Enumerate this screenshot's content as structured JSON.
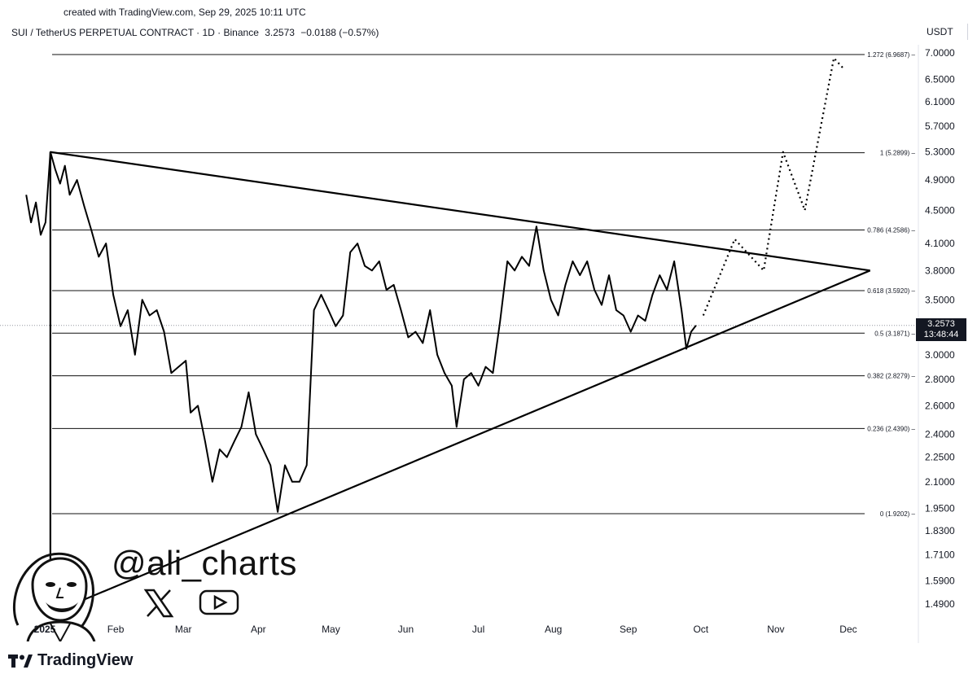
{
  "watermark": {
    "created": "created with TradingView.com, Sep 29, 2025 10:11 UTC",
    "brand": "TradingView",
    "handle": "@ali_charts",
    "social_icons": [
      "x-icon",
      "youtube-icon"
    ]
  },
  "header": {
    "symbol": "SUI / TetherUS PERPETUAL CONTRACT · 1D · Binance",
    "last": "3.2573",
    "change": "−0.0188 (−0.57%)",
    "currency": "USDT"
  },
  "price_tag": {
    "price": "3.2573",
    "countdown": "13:48:44",
    "color": "#131722"
  },
  "chart_data": {
    "type": "line",
    "x_axis": {
      "tick_labels": [
        "2025",
        "Feb",
        "Mar",
        "Apr",
        "May",
        "Jun",
        "Jul",
        "Aug",
        "Sep",
        "Oct",
        "Nov",
        "Dec"
      ],
      "range": [
        "2024-12-31",
        "2025-12-10"
      ]
    },
    "y_axis": {
      "scale": "log",
      "tick_labels": [
        "7.0000",
        "6.5000",
        "6.1000",
        "5.7000",
        "5.3000",
        "4.9000",
        "4.5000",
        "4.1000",
        "3.8000",
        "3.5000",
        "3.0000",
        "2.8000",
        "2.6000",
        "2.4000",
        "2.2500",
        "2.1000",
        "1.9500",
        "1.8300",
        "1.7100",
        "1.5900",
        "1.4900"
      ],
      "range": [
        1.45,
        7.3
      ]
    },
    "grid": false,
    "series": [
      {
        "color": "#000000",
        "points": [
          [
            "2024-12-26",
            4.7
          ],
          [
            "2024-12-28",
            4.35
          ],
          [
            "2024-12-30",
            4.6
          ],
          [
            "2025-01-01",
            4.2
          ],
          [
            "2025-01-03",
            4.35
          ],
          [
            "2025-01-05",
            5.3
          ],
          [
            "2025-01-07",
            5.05
          ],
          [
            "2025-01-09",
            4.85
          ],
          [
            "2025-01-11",
            5.1
          ],
          [
            "2025-01-13",
            4.7
          ],
          [
            "2025-01-16",
            4.9
          ],
          [
            "2025-01-19",
            4.55
          ],
          [
            "2025-01-22",
            4.25
          ],
          [
            "2025-01-25",
            3.95
          ],
          [
            "2025-01-28",
            4.1
          ],
          [
            "2025-01-31",
            3.55
          ],
          [
            "2025-02-03",
            3.25
          ],
          [
            "2025-02-06",
            3.4
          ],
          [
            "2025-02-09",
            3.0
          ],
          [
            "2025-02-12",
            3.5
          ],
          [
            "2025-02-15",
            3.35
          ],
          [
            "2025-02-18",
            3.4
          ],
          [
            "2025-02-21",
            3.2
          ],
          [
            "2025-02-24",
            2.85
          ],
          [
            "2025-02-27",
            2.9
          ],
          [
            "2025-03-02",
            2.95
          ],
          [
            "2025-03-04",
            2.55
          ],
          [
            "2025-03-07",
            2.6
          ],
          [
            "2025-03-10",
            2.35
          ],
          [
            "2025-03-13",
            2.1
          ],
          [
            "2025-03-16",
            2.3
          ],
          [
            "2025-03-19",
            2.25
          ],
          [
            "2025-03-22",
            2.35
          ],
          [
            "2025-03-25",
            2.45
          ],
          [
            "2025-03-28",
            2.7
          ],
          [
            "2025-03-31",
            2.4
          ],
          [
            "2025-04-03",
            2.3
          ],
          [
            "2025-04-06",
            2.2
          ],
          [
            "2025-04-09",
            1.93
          ],
          [
            "2025-04-12",
            2.2
          ],
          [
            "2025-04-15",
            2.1
          ],
          [
            "2025-04-18",
            2.1
          ],
          [
            "2025-04-21",
            2.2
          ],
          [
            "2025-04-24",
            3.4
          ],
          [
            "2025-04-27",
            3.55
          ],
          [
            "2025-04-30",
            3.4
          ],
          [
            "2025-05-03",
            3.25
          ],
          [
            "2025-05-06",
            3.35
          ],
          [
            "2025-05-09",
            4.0
          ],
          [
            "2025-05-12",
            4.1
          ],
          [
            "2025-05-15",
            3.85
          ],
          [
            "2025-05-18",
            3.8
          ],
          [
            "2025-05-21",
            3.9
          ],
          [
            "2025-05-24",
            3.6
          ],
          [
            "2025-05-27",
            3.65
          ],
          [
            "2025-05-30",
            3.4
          ],
          [
            "2025-06-02",
            3.15
          ],
          [
            "2025-06-05",
            3.2
          ],
          [
            "2025-06-08",
            3.1
          ],
          [
            "2025-06-11",
            3.4
          ],
          [
            "2025-06-14",
            3.0
          ],
          [
            "2025-06-17",
            2.85
          ],
          [
            "2025-06-20",
            2.75
          ],
          [
            "2025-06-22",
            2.45
          ],
          [
            "2025-06-25",
            2.8
          ],
          [
            "2025-06-28",
            2.85
          ],
          [
            "2025-07-01",
            2.75
          ],
          [
            "2025-07-04",
            2.9
          ],
          [
            "2025-07-07",
            2.85
          ],
          [
            "2025-07-10",
            3.3
          ],
          [
            "2025-07-13",
            3.9
          ],
          [
            "2025-07-16",
            3.8
          ],
          [
            "2025-07-19",
            3.95
          ],
          [
            "2025-07-22",
            3.85
          ],
          [
            "2025-07-25",
            4.3
          ],
          [
            "2025-07-28",
            3.8
          ],
          [
            "2025-07-31",
            3.5
          ],
          [
            "2025-08-03",
            3.35
          ],
          [
            "2025-08-06",
            3.65
          ],
          [
            "2025-08-09",
            3.9
          ],
          [
            "2025-08-12",
            3.75
          ],
          [
            "2025-08-15",
            3.9
          ],
          [
            "2025-08-18",
            3.6
          ],
          [
            "2025-08-21",
            3.45
          ],
          [
            "2025-08-24",
            3.75
          ],
          [
            "2025-08-27",
            3.4
          ],
          [
            "2025-08-30",
            3.35
          ],
          [
            "2025-09-02",
            3.2
          ],
          [
            "2025-09-05",
            3.35
          ],
          [
            "2025-09-08",
            3.3
          ],
          [
            "2025-09-11",
            3.55
          ],
          [
            "2025-09-14",
            3.75
          ],
          [
            "2025-09-17",
            3.6
          ],
          [
            "2025-09-20",
            3.9
          ],
          [
            "2025-09-23",
            3.4
          ],
          [
            "2025-09-25",
            3.05
          ],
          [
            "2025-09-27",
            3.2
          ],
          [
            "2025-09-29",
            3.2573
          ]
        ]
      },
      {
        "color": "#000000",
        "style": "dotted",
        "points": [
          [
            "2025-10-02",
            3.35
          ],
          [
            "2025-10-15",
            4.15
          ],
          [
            "2025-10-27",
            3.8
          ],
          [
            "2025-11-04",
            5.3
          ],
          [
            "2025-11-13",
            4.5
          ],
          [
            "2025-11-25",
            6.9
          ],
          [
            "2025-11-29",
            6.7
          ]
        ]
      }
    ],
    "trendlines": [
      {
        "from": [
          "2025-01-05",
          5.3
        ],
        "to": [
          "2025-12-10",
          3.8
        ]
      },
      {
        "from": [
          "2025-01-05",
          1.45
        ],
        "to": [
          "2025-12-10",
          3.8
        ]
      },
      {
        "from": [
          "2025-01-05",
          5.3
        ],
        "to": [
          "2025-01-05",
          1.45
        ]
      }
    ],
    "fib_levels": [
      {
        "label": "1.272 (6.9687)",
        "value": 6.9687
      },
      {
        "label": "1 (5.2899)",
        "value": 5.2899
      },
      {
        "label": "0.786 (4.2586)",
        "value": 4.2586
      },
      {
        "label": "0.618 (3.5920)",
        "value": 3.592
      },
      {
        "label": "0.5 (3.1871)",
        "value": 3.1871
      },
      {
        "label": "0.382 (2.8279)",
        "value": 2.8279
      },
      {
        "label": "0.236 (2.4390)",
        "value": 2.439
      },
      {
        "label": "0 (1.9202)",
        "value": 1.9202
      }
    ]
  }
}
